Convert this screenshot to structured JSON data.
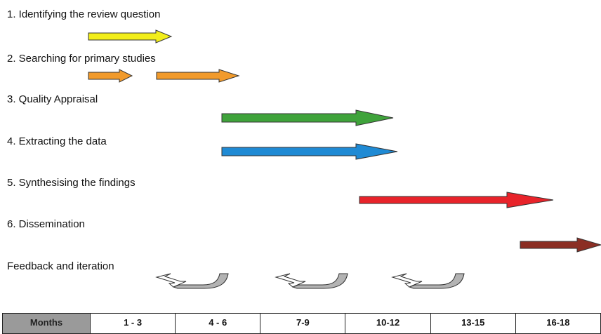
{
  "tasks": [
    {
      "label": "1. Identifying the review question",
      "color": "#f2ee1a"
    },
    {
      "label": "2. Searching for primary studies",
      "color": "#f19a2b"
    },
    {
      "label": "3. Quality Appraisal",
      "color": "#3fa33b"
    },
    {
      "label": "4. Extracting the data",
      "color": "#1f8ad4"
    },
    {
      "label": "5. Synthesising  the findings",
      "color": "#e8232a"
    },
    {
      "label": "6.  Dissemination",
      "color": "#8b2e24"
    }
  ],
  "feedback": {
    "label": "Feedback and iteration"
  },
  "months": {
    "header": "Months",
    "periods": [
      "1 - 3",
      "4 - 6",
      "7-9",
      "10-12",
      "13-15",
      "16-18"
    ]
  }
}
